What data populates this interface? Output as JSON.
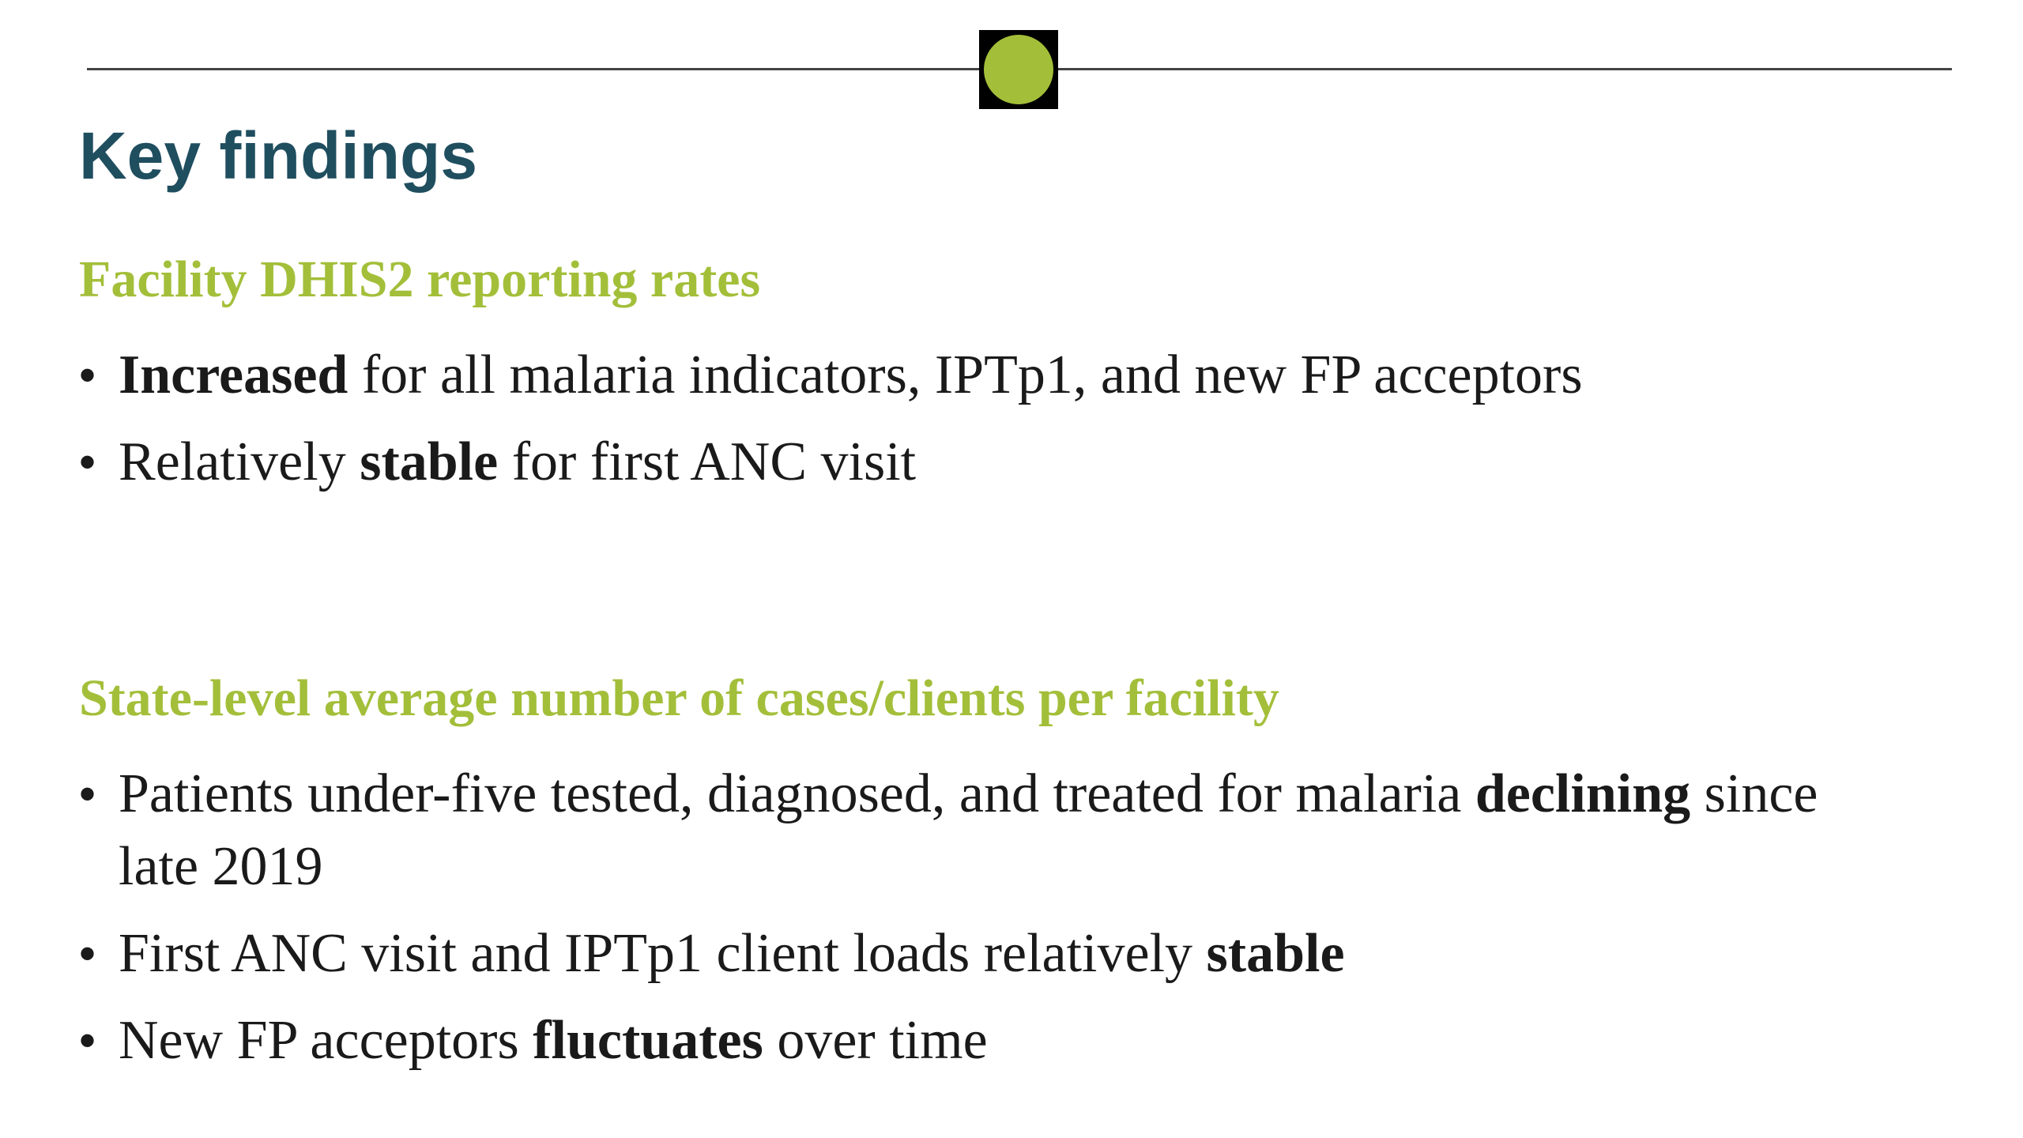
{
  "colors": {
    "title": "#1f4e5f",
    "accent": "#a3bf3a",
    "rule": "#444444",
    "text": "#1a1a1a"
  },
  "title": "Key findings",
  "sections": [
    {
      "heading": "Facility DHIS2 reporting rates",
      "bullets": [
        {
          "marker": "•",
          "parts": [
            {
              "text": "Increased",
              "bold": true
            },
            {
              "text": " for all malaria indicators, IPTp1, and new FP acceptors",
              "bold": false
            }
          ]
        },
        {
          "marker": "•",
          "parts": [
            {
              "text": "Relatively ",
              "bold": false
            },
            {
              "text": "stable",
              "bold": true
            },
            {
              "text": " for first ANC visit",
              "bold": false
            }
          ]
        }
      ]
    },
    {
      "heading": "State-level average number of cases/clients per facility",
      "bullets": [
        {
          "marker": "•",
          "parts": [
            {
              "text": "Patients under-five tested, diagnosed, and treated for malaria ",
              "bold": false
            },
            {
              "text": "declining",
              "bold": true
            },
            {
              "text": " since late 2019",
              "bold": false
            }
          ]
        },
        {
          "marker": "•",
          "parts": [
            {
              "text": "First ANC visit and IPTp1 client loads relatively ",
              "bold": false
            },
            {
              "text": "stable",
              "bold": true
            }
          ]
        },
        {
          "marker": "•",
          "parts": [
            {
              "text": "New FP acceptors ",
              "bold": false
            },
            {
              "text": "fluctuates",
              "bold": true
            },
            {
              "text": " over time",
              "bold": false
            }
          ]
        }
      ]
    }
  ]
}
